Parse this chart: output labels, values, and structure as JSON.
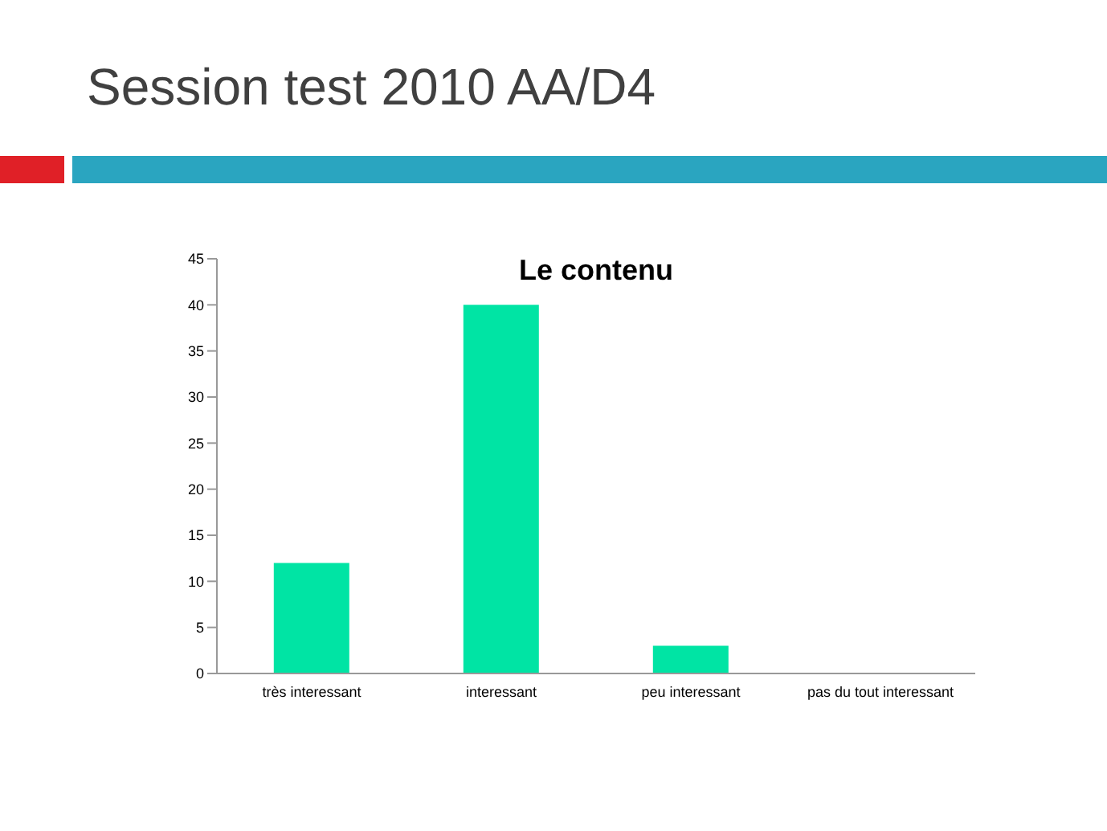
{
  "chart_data": {
    "type": "bar",
    "title": "Session test 2010 AA/D4",
    "subtitle": "Le contenu",
    "categories": [
      "très interessant",
      "interessant",
      "peu interessant",
      "pas du tout interessant"
    ],
    "values": [
      12,
      40,
      3,
      0
    ],
    "color": "#00e4a4",
    "ylim": [
      0,
      45
    ],
    "yticks": [
      0,
      5,
      10,
      15,
      20,
      25,
      30,
      35,
      40,
      45
    ],
    "grid": false
  }
}
